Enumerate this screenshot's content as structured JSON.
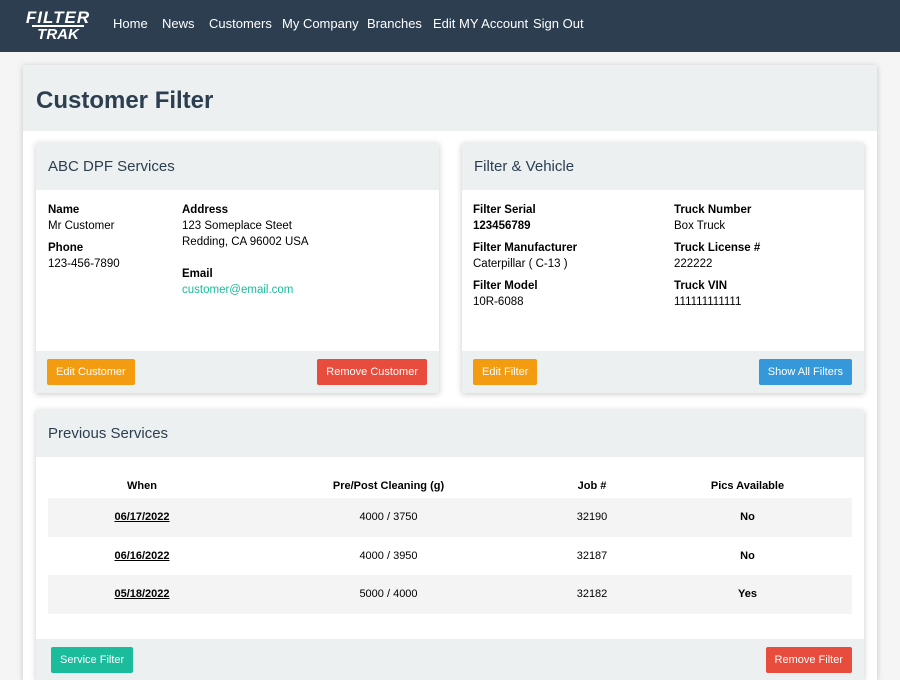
{
  "logo": {
    "line1": "FILTER",
    "line2": "TRAK"
  },
  "nav": [
    "Home",
    "News",
    "Customers",
    "My Company",
    "Branches",
    "Edit MY Account",
    "Sign Out"
  ],
  "page_title": "Customer Filter",
  "customer_card": {
    "title": "ABC DPF Services",
    "name": {
      "label": "Name",
      "value": "Mr Customer"
    },
    "phone": {
      "label": "Phone",
      "value": "123-456-7890"
    },
    "address": {
      "label": "Address",
      "lines": [
        "123 Someplace Steet",
        "Redding, CA 96002 USA"
      ]
    },
    "email": {
      "label": "Email",
      "value": "customer@email.com"
    },
    "buttons": [
      "Edit Customer",
      "Remove Customer"
    ]
  },
  "filter_card": {
    "title": "Filter & Vehicle",
    "left": [
      {
        "label": "Filter Serial",
        "value": "123456789"
      },
      {
        "label": "Filter Manufacturer",
        "value": "Caterpillar ( C-13 )"
      },
      {
        "label": "Filter Model",
        "value": "10R-6088"
      }
    ],
    "right": [
      {
        "label": "Truck Number",
        "value": "Box Truck"
      },
      {
        "label": "Truck License #",
        "value": "222222"
      },
      {
        "label": "Truck VIN",
        "value": "111111111111"
      }
    ],
    "buttons": [
      "Edit Filter",
      "Show All Filters"
    ]
  },
  "services": {
    "title": "Previous Services",
    "table": {
      "columns": [
        "When",
        "Pre/Post Cleaning (g)",
        "Job #",
        "Pics Available"
      ],
      "rows": [
        [
          "06/17/2022",
          "4000 / 3750",
          "32190",
          "No"
        ],
        [
          "06/16/2022",
          "4000 / 3950",
          "32187",
          "No"
        ],
        [
          "05/18/2022",
          "5000 / 4000",
          "32182",
          "Yes"
        ]
      ]
    },
    "buttons": [
      "Service Filter",
      "Remove Filter"
    ]
  }
}
